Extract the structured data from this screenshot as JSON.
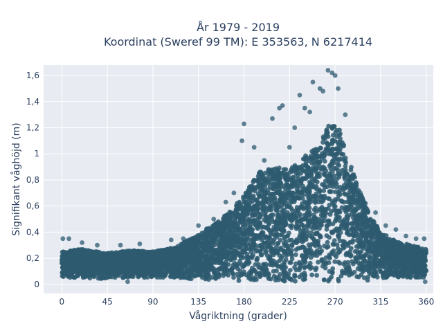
{
  "chart_data": {
    "type": "scatter",
    "title_line1": "År 1979 - 2019",
    "title_line2": "Koordinat (Sweref 99 TM): E 353563, N 6217414",
    "xlabel": "Vågriktning (grader)",
    "ylabel": "Signifikant våghöjd (m)",
    "xlim": [
      -18,
      367
    ],
    "ylim": [
      -0.07,
      1.68
    ],
    "x_ticks": [
      0,
      45,
      90,
      135,
      180,
      225,
      270,
      315,
      360
    ],
    "y_ticks": [
      0,
      0.2,
      0.4,
      0.6,
      0.8,
      1.0,
      1.2,
      1.4,
      1.6
    ],
    "x_tick_labels": [
      "0",
      "45",
      "90",
      "135",
      "180",
      "225",
      "270",
      "315",
      "360"
    ],
    "y_tick_labels": [
      "0",
      "0,2",
      "0,4",
      "0,6",
      "0,8",
      "1",
      "1,2",
      "1,4",
      "1,6"
    ],
    "grid": true,
    "marker_color": "#2e5a70",
    "plot_background": "#e8ecf2",
    "envelope": {
      "direction": [
        0,
        20,
        45,
        70,
        90,
        110,
        130,
        150,
        165,
        180,
        195,
        210,
        225,
        240,
        255,
        262,
        268,
        275,
        285,
        295,
        305,
        315,
        330,
        345,
        360
      ],
      "lower": [
        0.05,
        0.05,
        0.04,
        0.05,
        0.05,
        0.05,
        0.04,
        0.03,
        0.03,
        0.02,
        0.02,
        0.02,
        0.02,
        0.02,
        0.02,
        0.02,
        0.02,
        0.02,
        0.02,
        0.03,
        0.03,
        0.04,
        0.05,
        0.05,
        0.05
      ],
      "upper": [
        0.25,
        0.27,
        0.24,
        0.26,
        0.25,
        0.28,
        0.36,
        0.46,
        0.55,
        0.68,
        0.86,
        0.9,
        0.88,
        0.98,
        1.08,
        1.2,
        1.25,
        1.18,
        0.92,
        0.7,
        0.52,
        0.4,
        0.33,
        0.3,
        0.27
      ]
    },
    "outliers": [
      [
        1,
        0.35
      ],
      [
        7,
        0.35
      ],
      [
        20,
        0.32
      ],
      [
        35,
        0.3
      ],
      [
        58,
        0.3
      ],
      [
        65,
        0.02
      ],
      [
        77,
        0.31
      ],
      [
        108,
        0.34
      ],
      [
        120,
        0.35
      ],
      [
        135,
        0.45
      ],
      [
        150,
        0.5
      ],
      [
        162,
        0.63
      ],
      [
        170,
        0.7
      ],
      [
        180,
        1.23
      ],
      [
        178,
        1.1
      ],
      [
        190,
        1.05
      ],
      [
        200,
        0.95
      ],
      [
        208,
        1.27
      ],
      [
        215,
        1.35
      ],
      [
        218,
        1.37
      ],
      [
        225,
        1.05
      ],
      [
        230,
        1.2
      ],
      [
        235,
        1.45
      ],
      [
        240,
        1.35
      ],
      [
        245,
        1.32
      ],
      [
        248,
        1.55
      ],
      [
        255,
        1.5
      ],
      [
        258,
        1.48
      ],
      [
        263,
        1.64
      ],
      [
        267,
        1.62
      ],
      [
        270,
        1.6
      ],
      [
        273,
        1.5
      ],
      [
        280,
        1.3
      ],
      [
        290,
        0.75
      ],
      [
        295,
        0.7
      ],
      [
        300,
        0.62
      ],
      [
        310,
        0.55
      ],
      [
        320,
        0.45
      ],
      [
        330,
        0.42
      ],
      [
        340,
        0.37
      ],
      [
        350,
        0.35
      ],
      [
        358,
        0.35
      ],
      [
        359,
        0.02
      ]
    ]
  }
}
